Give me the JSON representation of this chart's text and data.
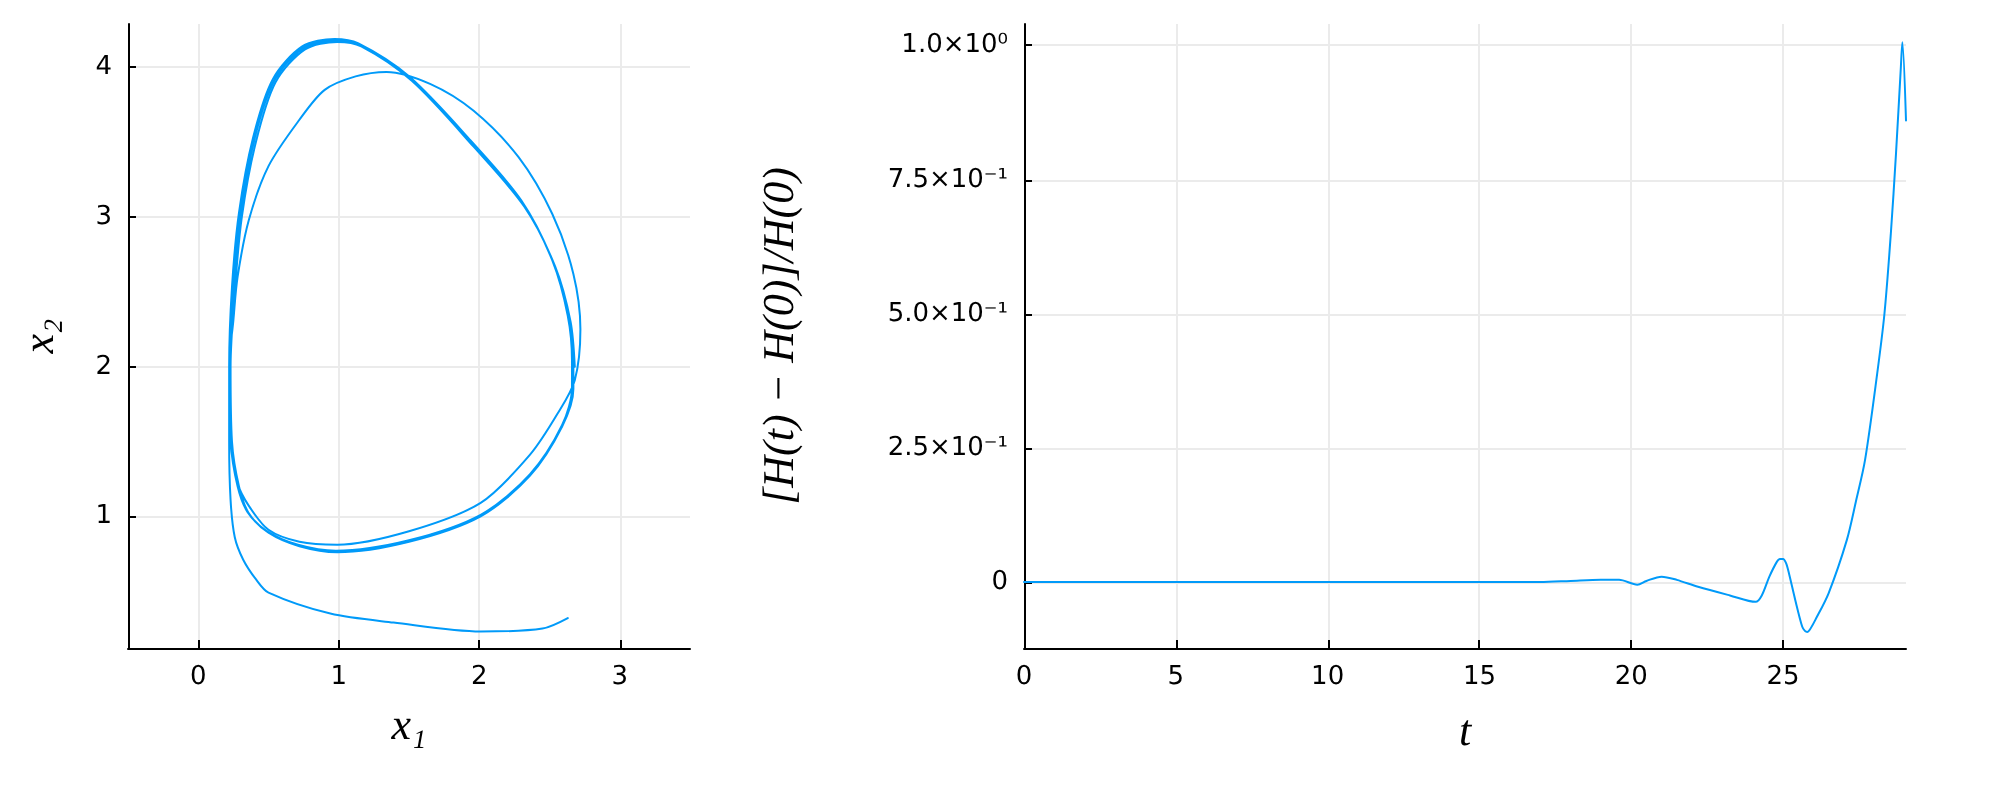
{
  "chart_data": [
    {
      "type": "line",
      "xlabel": "x₁",
      "ylabel": "x₂",
      "color": "#009af9",
      "marker": "none",
      "grid": true,
      "xlim": [
        -0.5,
        3.5
      ],
      "ylim": [
        0.12,
        4.29
      ],
      "xticks": [
        0,
        1,
        2,
        3
      ],
      "yticks": [
        1,
        2,
        3,
        4
      ],
      "x": [
        2.68,
        2.65,
        2.54,
        2.32,
        1.96,
        1.52,
        1.16,
        0.99,
        0.76,
        0.55,
        0.41,
        0.31,
        0.26,
        0.23,
        0.24,
        0.29,
        0.36,
        0.5,
        0.72,
        0.99,
        1.5,
        2.01,
        2.36,
        2.59,
        2.67,
        2.67,
        2.64,
        2.53,
        2.31,
        1.95,
        1.51,
        1.15,
        0.98,
        0.75,
        0.54,
        0.4,
        0.3,
        0.25,
        0.22,
        0.23,
        0.28,
        0.35,
        0.49,
        0.71,
        0.98,
        1.5,
        2.01,
        2.36,
        2.59,
        2.66,
        2.66,
        2.63,
        2.52,
        2.3,
        1.94,
        1.5,
        1.14,
        0.97,
        0.74,
        0.53,
        0.39,
        0.29,
        0.24,
        0.22,
        0.23,
        0.28,
        0.36,
        0.5,
        0.72,
        0.99,
        1.5,
        2.01,
        2.36,
        2.56,
        2.68,
        2.72,
        2.67,
        2.52,
        2.28,
        1.96,
        1.65,
        1.34,
        1.12,
        0.9,
        0.72,
        0.5,
        0.36,
        0.28,
        0.25,
        0.22,
        0.22,
        0.23,
        0.26,
        0.32,
        0.41,
        0.5,
        0.94,
        1.39,
        2.01,
        2.45,
        2.63
      ],
      "values": [
        2.0,
        2.3,
        2.67,
        3.07,
        3.47,
        3.91,
        4.14,
        4.17,
        4.12,
        3.9,
        3.5,
        3.0,
        2.5,
        2.0,
        1.5,
        1.2,
        1.02,
        0.89,
        0.8,
        0.76,
        0.83,
        1.0,
        1.27,
        1.6,
        1.85,
        2.02,
        2.32,
        2.69,
        3.09,
        3.49,
        3.93,
        4.15,
        4.18,
        4.13,
        3.91,
        3.52,
        3.02,
        2.52,
        2.0,
        1.5,
        1.2,
        1.03,
        0.9,
        0.81,
        0.77,
        0.84,
        1.01,
        1.28,
        1.61,
        1.86,
        2.04,
        2.34,
        2.71,
        3.11,
        3.51,
        3.94,
        4.16,
        4.19,
        4.14,
        3.92,
        3.53,
        3.03,
        2.53,
        2.0,
        1.5,
        1.22,
        1.07,
        0.91,
        0.83,
        0.81,
        0.9,
        1.09,
        1.41,
        1.69,
        1.91,
        2.25,
        2.62,
        3.02,
        3.4,
        3.71,
        3.89,
        3.97,
        3.94,
        3.85,
        3.65,
        3.34,
        2.98,
        2.6,
        2.31,
        2.0,
        1.5,
        1.11,
        0.86,
        0.71,
        0.58,
        0.49,
        0.35,
        0.29,
        0.23,
        0.25,
        0.32
      ]
    },
    {
      "type": "line",
      "xlabel": "t",
      "ylabel": "[H(t) − H(0)]/H(0)",
      "color": "#009af9",
      "marker": "none",
      "grid": true,
      "xlim": [
        0,
        29.05
      ],
      "ylim": [
        -0.123,
        1.04
      ],
      "xticks": [
        0,
        5,
        10,
        15,
        20,
        25
      ],
      "yticks": [
        {
          "value": 0,
          "label": "0"
        },
        {
          "value": 0.25,
          "label": "2.5×10⁻¹"
        },
        {
          "value": 0.5,
          "label": "5.0×10⁻¹"
        },
        {
          "value": 0.75,
          "label": "7.5×10⁻¹"
        },
        {
          "value": 1,
          "label": "1.0×10⁰"
        }
      ],
      "x": [
        0,
        5,
        10,
        15,
        17,
        18,
        19,
        19.6,
        20.2,
        20.5,
        21.0,
        21.5,
        22.2,
        23.25,
        24.1,
        24.3,
        24.55,
        24.8,
        24.9,
        25.0,
        25.1,
        25.2,
        25.4,
        25.63,
        25.72,
        25.8,
        25.88,
        26.06,
        26.5,
        27.1,
        27.4,
        27.7,
        28.1,
        28.34,
        28.55,
        28.72,
        28.88,
        28.93,
        29.05
      ],
      "values": [
        0,
        0,
        0,
        0,
        0,
        0.002,
        0.004,
        0.004,
        -0.005,
        0.002,
        0.01,
        0.004,
        -0.009,
        -0.025,
        -0.037,
        -0.025,
        0.01,
        0.038,
        0.043,
        0.043,
        0.035,
        0.015,
        -0.033,
        -0.083,
        -0.091,
        -0.093,
        -0.089,
        -0.071,
        -0.021,
        0.078,
        0.15,
        0.227,
        0.388,
        0.5,
        0.649,
        0.798,
        0.959,
        1.006,
        0.86
      ]
    }
  ]
}
